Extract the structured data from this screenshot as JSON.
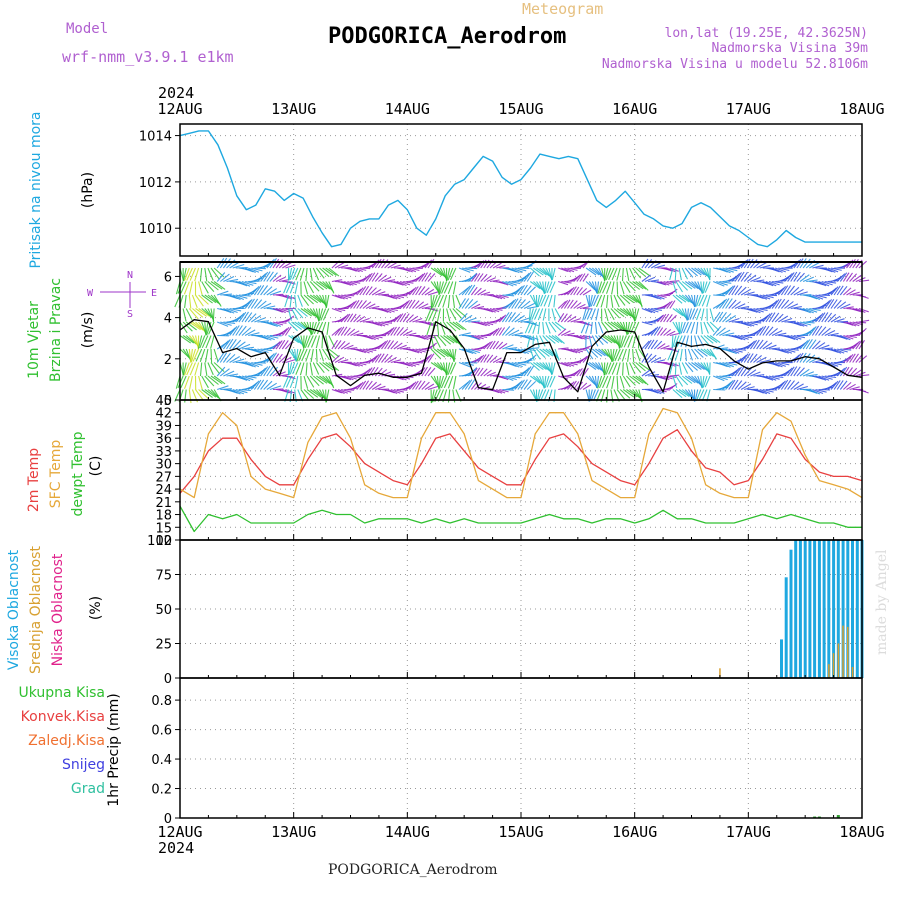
{
  "header": {
    "meteogram": "Meteogram",
    "model_label": "Model",
    "model_name": "wrf-nmm_v3.9.1  e1km",
    "title": "PODGORICA_Aerodrom",
    "coords": "lon,lat (19.25E, 42.3625N)",
    "elev": "Nadmorska Visina 39m",
    "elev_model": "Nadmorska Visina u modelu 52.8106m",
    "footer": "PODGORICA_Aerodrom",
    "credit": "made by Angel"
  },
  "time_axis": {
    "year": "2024",
    "labels": [
      "12AUG",
      "13AUG",
      "14AUG",
      "15AUG",
      "16AUG",
      "17AUG",
      "18AUG"
    ]
  },
  "colors": {
    "pressure": "#1ea8e0",
    "temp2m": "#e84040",
    "sfc": "#e6a83a",
    "dewpt": "#30c030",
    "cloud_high": "#1ea8e0",
    "cloud_mid": "#d8a030",
    "cloud_low": "#e0208a",
    "wind_speed": "#000000",
    "wind_dir": "#9e34c8"
  },
  "chart_data": [
    {
      "type": "line",
      "panel": "pressure",
      "ylabel_lines": [
        "Pritisak na nivou mora"
      ],
      "unit": "(hPa)",
      "yticks": [
        1010,
        1012,
        1014
      ],
      "ylim": [
        1008.8,
        1014.5
      ],
      "x": [
        0,
        2,
        4,
        6,
        8,
        10,
        12,
        14,
        16,
        18,
        20,
        22,
        24,
        26,
        28,
        30,
        32,
        34,
        36,
        38,
        40,
        42,
        44,
        46,
        48,
        50,
        52,
        54,
        56,
        58,
        60,
        62,
        64,
        66,
        68,
        70,
        72,
        74,
        76,
        78,
        80,
        82,
        84,
        86,
        88,
        90,
        92,
        94,
        96,
        98,
        100,
        102,
        104,
        106,
        108,
        110,
        112,
        114,
        116,
        118,
        120,
        122,
        124,
        126,
        128,
        130,
        132,
        134,
        136,
        138,
        140,
        142,
        144
      ],
      "series": [
        {
          "values": [
            1014.0,
            1014.1,
            1014.2,
            1014.2,
            1013.6,
            1012.6,
            1011.4,
            1010.8,
            1011.0,
            1011.7,
            1011.6,
            1011.2,
            1011.5,
            1011.3,
            1010.5,
            1009.8,
            1009.2,
            1009.3,
            1010.0,
            1010.3,
            1010.4,
            1010.4,
            1011.0,
            1011.2,
            1010.8,
            1010.0,
            1009.7,
            1010.4,
            1011.4,
            1011.9,
            1012.1,
            1012.6,
            1013.1,
            1012.9,
            1012.2,
            1011.9,
            1012.1,
            1012.6,
            1013.2,
            1013.1,
            1013.0,
            1013.1,
            1013.0,
            1012.1,
            1011.2,
            1010.9,
            1011.2,
            1011.6,
            1011.1,
            1010.6,
            1010.4,
            1010.1,
            1010.0,
            1010.2,
            1010.9,
            1011.1,
            1010.9,
            1010.5,
            1010.1,
            1009.9,
            1009.6,
            1009.3,
            1009.2,
            1009.5,
            1009.9,
            1009.6,
            1009.4,
            1009.4,
            1009.4,
            1009.4,
            1009.4,
            1009.4,
            1009.4
          ]
        }
      ]
    },
    {
      "type": "line",
      "panel": "wind",
      "ylabel_lines": [
        "10m Vjetar",
        "Brzina i Pravac"
      ],
      "unit": "(m/s)",
      "compass": [
        "N",
        "W",
        "E",
        "S"
      ],
      "yticks": [
        0,
        2,
        4,
        6
      ],
      "ylim": [
        0,
        6.7
      ],
      "x": [
        0,
        3,
        6,
        9,
        12,
        15,
        18,
        21,
        24,
        27,
        30,
        33,
        36,
        39,
        42,
        45,
        48,
        51,
        54,
        57,
        60,
        63,
        66,
        69,
        72,
        75,
        78,
        81,
        84,
        87,
        90,
        93,
        96,
        99,
        102,
        105,
        108,
        111,
        114,
        117,
        120,
        123,
        126,
        129,
        132,
        135,
        138,
        141,
        144
      ],
      "series": [
        {
          "values": [
            3.4,
            3.9,
            3.8,
            2.3,
            2.5,
            2.1,
            2.3,
            1.2,
            3.0,
            3.5,
            3.3,
            1.2,
            0.7,
            1.2,
            1.3,
            1.1,
            1.1,
            1.3,
            3.8,
            3.4,
            2.5,
            0.6,
            0.5,
            2.3,
            2.3,
            2.7,
            2.8,
            1.1,
            0.4,
            2.6,
            3.3,
            3.4,
            3.3,
            1.6,
            0.4,
            2.8,
            2.6,
            2.7,
            2.5,
            1.9,
            1.5,
            1.8,
            1.9,
            1.9,
            2.1,
            2.0,
            1.6,
            1.2,
            1.1
          ]
        }
      ]
    },
    {
      "type": "line",
      "panel": "temperature",
      "ylabel_lines": [
        "2m Temp",
        "SFC Temp",
        "dewpt Temp"
      ],
      "unit": "(C)",
      "yticks": [
        12,
        15,
        18,
        21,
        24,
        27,
        30,
        33,
        36,
        39,
        42,
        45
      ],
      "ylim": [
        12,
        45
      ],
      "x": [
        0,
        3,
        6,
        9,
        12,
        15,
        18,
        21,
        24,
        27,
        30,
        33,
        36,
        39,
        42,
        45,
        48,
        51,
        54,
        57,
        60,
        63,
        66,
        69,
        72,
        75,
        78,
        81,
        84,
        87,
        90,
        93,
        96,
        99,
        102,
        105,
        108,
        111,
        114,
        117,
        120,
        123,
        126,
        129,
        132,
        135,
        138,
        141,
        144
      ],
      "series": [
        {
          "name": "2m Temp",
          "values": [
            23,
            27,
            33,
            36,
            36,
            31,
            27,
            25,
            25,
            31,
            36,
            37,
            34,
            30,
            28,
            26,
            25,
            30,
            36,
            37,
            33,
            29,
            27,
            25,
            25,
            31,
            36,
            37,
            34,
            30,
            28,
            26,
            25,
            30,
            36,
            38,
            33,
            29,
            28,
            25,
            26,
            31,
            37,
            36,
            31,
            28,
            27,
            27,
            26
          ]
        },
        {
          "name": "SFC Temp",
          "values": [
            24,
            22,
            37,
            42,
            39,
            27,
            24,
            23,
            22,
            35,
            41,
            42,
            36,
            25,
            23,
            22,
            22,
            36,
            42,
            42,
            37,
            26,
            24,
            22,
            22,
            37,
            42,
            42,
            37,
            26,
            24,
            22,
            22,
            37,
            43,
            42,
            36,
            25,
            23,
            22,
            22,
            38,
            42,
            40,
            32,
            26,
            25,
            24,
            22
          ]
        },
        {
          "name": "dewpt Temp",
          "values": [
            20,
            14,
            18,
            17,
            18,
            16,
            16,
            16,
            16,
            18,
            19,
            18,
            18,
            16,
            17,
            17,
            17,
            16,
            17,
            16,
            17,
            16,
            16,
            16,
            16,
            17,
            18,
            17,
            17,
            16,
            17,
            17,
            16,
            17,
            19,
            17,
            17,
            16,
            16,
            16,
            17,
            18,
            17,
            18,
            17,
            16,
            16,
            15,
            15
          ]
        }
      ]
    },
    {
      "type": "bar",
      "panel": "clouds",
      "ylabel_lines": [
        "Visoka Oblacnost",
        "Srednja Oblacnost",
        "Niska Oblacnost"
      ],
      "unit": "(%)",
      "yticks": [
        0,
        25,
        50,
        75,
        100
      ],
      "ylim": [
        0,
        100
      ],
      "x": [
        112,
        113,
        114,
        115,
        116,
        117,
        118,
        119,
        120,
        121,
        122,
        123,
        124,
        125,
        126,
        127,
        128,
        129,
        130,
        131,
        132,
        133,
        134,
        135,
        136,
        137,
        138,
        139,
        140,
        141,
        142,
        143,
        144
      ],
      "series": [
        {
          "name": "Visoka Oblacnost",
          "values": [
            0,
            0,
            0,
            0,
            0,
            0,
            0,
            0,
            0,
            0,
            0,
            0,
            0,
            0,
            0,
            28,
            73,
            93,
            100,
            100,
            100,
            100,
            100,
            100,
            100,
            100,
            100,
            100,
            100,
            100,
            100,
            100,
            100
          ]
        },
        {
          "name": "Srednja Oblacnost",
          "values": [
            0,
            0,
            7,
            0,
            0,
            0,
            0,
            0,
            0,
            0,
            0,
            0,
            0,
            0,
            0,
            0,
            0,
            0,
            0,
            0,
            0,
            0,
            0,
            0,
            0,
            10,
            18,
            25,
            38,
            37,
            8,
            0,
            0
          ]
        },
        {
          "name": "Niska Oblacnost",
          "values": [
            0,
            0,
            0,
            0,
            0,
            0,
            0,
            0,
            0,
            0,
            0,
            0,
            0,
            0,
            0,
            0,
            0,
            0,
            0,
            0,
            0,
            0,
            0,
            0,
            0,
            0,
            0,
            0,
            0,
            0,
            0,
            0,
            0
          ]
        }
      ]
    },
    {
      "type": "bar",
      "panel": "precip",
      "ylabel_lines": [
        "1hr Precip"
      ],
      "unit": "(mm)",
      "legend": [
        "Ukupna Kisa",
        "Konvek.Kisa",
        "Zaledj.Kisa",
        "Snijeg",
        "Grad"
      ],
      "yticks": [
        0,
        0.2,
        0.4,
        0.6,
        0.8
      ],
      "ylim": [
        0,
        0.95
      ],
      "x": [
        133,
        134,
        135,
        136,
        137,
        138,
        139,
        140
      ],
      "series": [
        {
          "name": "Ukupna Kisa",
          "values": [
            0,
            0.01,
            0.01,
            0,
            0,
            0,
            0.02,
            0
          ]
        }
      ]
    }
  ]
}
